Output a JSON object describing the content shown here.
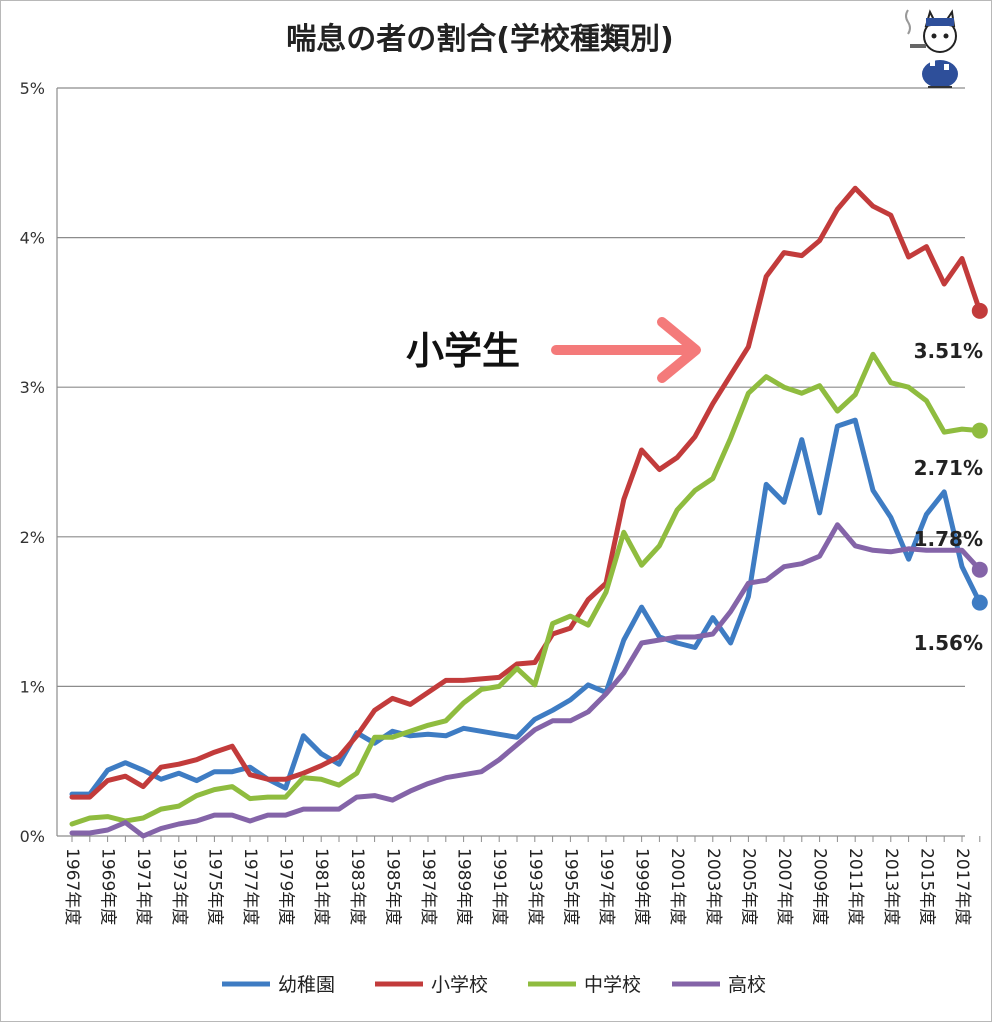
{
  "chart_data": {
    "type": "line",
    "title": "喘息の者の割合(学校種類別)",
    "xlabel": "",
    "ylabel": "",
    "ylim": [
      0,
      5
    ],
    "yticks": [
      "0%",
      "1%",
      "2%",
      "3%",
      "4%",
      "5%"
    ],
    "grid": true,
    "legend_position": "bottom",
    "x": [
      1967,
      1968,
      1969,
      1970,
      1971,
      1972,
      1973,
      1974,
      1975,
      1976,
      1977,
      1978,
      1979,
      1980,
      1981,
      1982,
      1983,
      1984,
      1985,
      1986,
      1987,
      1988,
      1989,
      1990,
      1991,
      1992,
      1993,
      1994,
      1995,
      1996,
      1997,
      1998,
      1999,
      2000,
      2001,
      2002,
      2003,
      2004,
      2005,
      2006,
      2007,
      2008,
      2009,
      2010,
      2011,
      2012,
      2013,
      2014,
      2015,
      2016,
      2017,
      2018
    ],
    "xtick_labels": [
      "1967年度",
      "1969年度",
      "1971年度",
      "1973年度",
      "1975年度",
      "1977年度",
      "1979年度",
      "1981年度",
      "1983年度",
      "1985年度",
      "1987年度",
      "1989年度",
      "1991年度",
      "1993年度",
      "1995年度",
      "1997年度",
      "1999年度",
      "2001年度",
      "2003年度",
      "2005年度",
      "2007年度",
      "2009年度",
      "2011年度",
      "2013年度",
      "2015年度",
      "2017年度"
    ],
    "series": [
      {
        "name": "幼稚園",
        "color": "#3e7cc3",
        "values": [
          0.28,
          0.28,
          0.44,
          0.49,
          0.44,
          0.38,
          0.42,
          0.37,
          0.43,
          0.43,
          0.46,
          0.38,
          0.32,
          0.67,
          0.55,
          0.48,
          0.69,
          0.62,
          0.7,
          0.67,
          0.68,
          0.67,
          0.72,
          0.7,
          0.68,
          0.66,
          0.78,
          0.84,
          0.91,
          1.01,
          0.96,
          1.31,
          1.53,
          1.33,
          1.29,
          1.26,
          1.46,
          1.29,
          1.6,
          2.35,
          2.23,
          2.65,
          2.16,
          2.74,
          2.78,
          2.31,
          2.13,
          1.85,
          2.15,
          2.3,
          1.8,
          1.56
        ]
      },
      {
        "name": "小学校",
        "color": "#c23b3b",
        "values": [
          0.26,
          0.26,
          0.37,
          0.4,
          0.33,
          0.46,
          0.48,
          0.51,
          0.56,
          0.6,
          0.41,
          0.38,
          0.38,
          0.42,
          0.47,
          0.53,
          0.67,
          0.84,
          0.92,
          0.88,
          0.96,
          1.04,
          1.04,
          1.05,
          1.06,
          1.15,
          1.16,
          1.35,
          1.39,
          1.58,
          1.69,
          2.25,
          2.58,
          2.45,
          2.53,
          2.67,
          2.89,
          3.08,
          3.27,
          3.74,
          3.9,
          3.88,
          3.98,
          4.19,
          4.33,
          4.21,
          4.15,
          3.87,
          3.94,
          3.69,
          3.86,
          3.51
        ]
      },
      {
        "name": "中学校",
        "color": "#8fbc3f",
        "values": [
          0.08,
          0.12,
          0.13,
          0.1,
          0.12,
          0.18,
          0.2,
          0.27,
          0.31,
          0.33,
          0.25,
          0.26,
          0.26,
          0.39,
          0.38,
          0.34,
          0.42,
          0.66,
          0.66,
          0.7,
          0.74,
          0.77,
          0.89,
          0.98,
          1.0,
          1.12,
          1.01,
          1.42,
          1.47,
          1.41,
          1.63,
          2.03,
          1.81,
          1.94,
          2.18,
          2.31,
          2.39,
          2.66,
          2.96,
          3.07,
          3.0,
          2.96,
          3.01,
          2.84,
          2.95,
          3.22,
          3.03,
          3.0,
          2.91,
          2.7,
          2.72,
          2.71
        ]
      },
      {
        "name": "高校",
        "color": "#8464a8",
        "values": [
          0.02,
          0.02,
          0.04,
          0.09,
          0.0,
          0.05,
          0.08,
          0.1,
          0.14,
          0.14,
          0.1,
          0.14,
          0.14,
          0.18,
          0.18,
          0.18,
          0.26,
          0.27,
          0.24,
          0.3,
          0.35,
          0.39,
          0.41,
          0.43,
          0.51,
          0.61,
          0.71,
          0.77,
          0.77,
          0.83,
          0.95,
          1.09,
          1.29,
          1.31,
          1.33,
          1.33,
          1.35,
          1.5,
          1.69,
          1.71,
          1.8,
          1.82,
          1.87,
          2.08,
          1.94,
          1.91,
          1.9,
          1.92,
          1.91,
          1.91,
          1.91,
          1.78
        ]
      }
    ],
    "end_labels": [
      "3.51%",
      "2.71%",
      "1.78%",
      "1.56%"
    ],
    "annotation": "小学生"
  }
}
